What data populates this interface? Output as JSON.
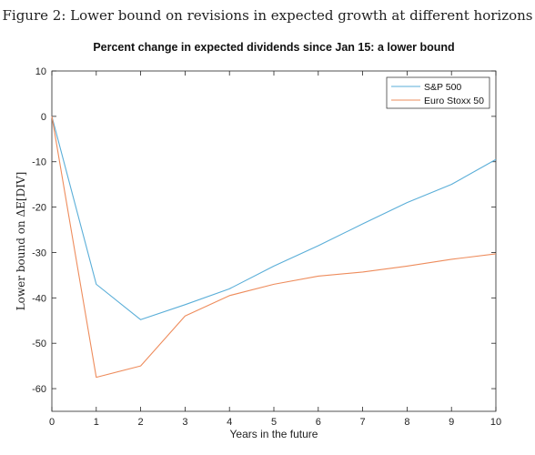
{
  "figure_caption": "Figure 2: Lower bound on revisions in expected growth at different horizons",
  "chart_data": {
    "type": "line",
    "title": "Percent change in expected dividends since Jan 15: a lower bound",
    "xlabel": "Years in the future",
    "ylabel": "Lower bound on ΔE[DIV]",
    "x": [
      0,
      1,
      2,
      3,
      4,
      5,
      6,
      7,
      8,
      9,
      10
    ],
    "xlim": [
      0,
      10
    ],
    "ylim": [
      -65,
      10
    ],
    "xticks": [
      0,
      1,
      2,
      3,
      4,
      5,
      6,
      7,
      8,
      9,
      10
    ],
    "yticks": [
      10,
      0,
      -10,
      -20,
      -30,
      -40,
      -50,
      -60
    ],
    "grid": false,
    "legend_position": "top-right",
    "series": [
      {
        "name": "S&P 500",
        "color": "#5aaed8",
        "values": [
          0,
          -37,
          -44.8,
          -41.5,
          -38,
          -33,
          -28.5,
          -23.7,
          -19,
          -15,
          -9.5
        ]
      },
      {
        "name": "Euro Stoxx 50",
        "color": "#ee8c5c",
        "values": [
          0,
          -57.5,
          -55,
          -44,
          -39.5,
          -37,
          -35.2,
          -34.3,
          -33,
          -31.5,
          -30.3
        ]
      }
    ]
  }
}
